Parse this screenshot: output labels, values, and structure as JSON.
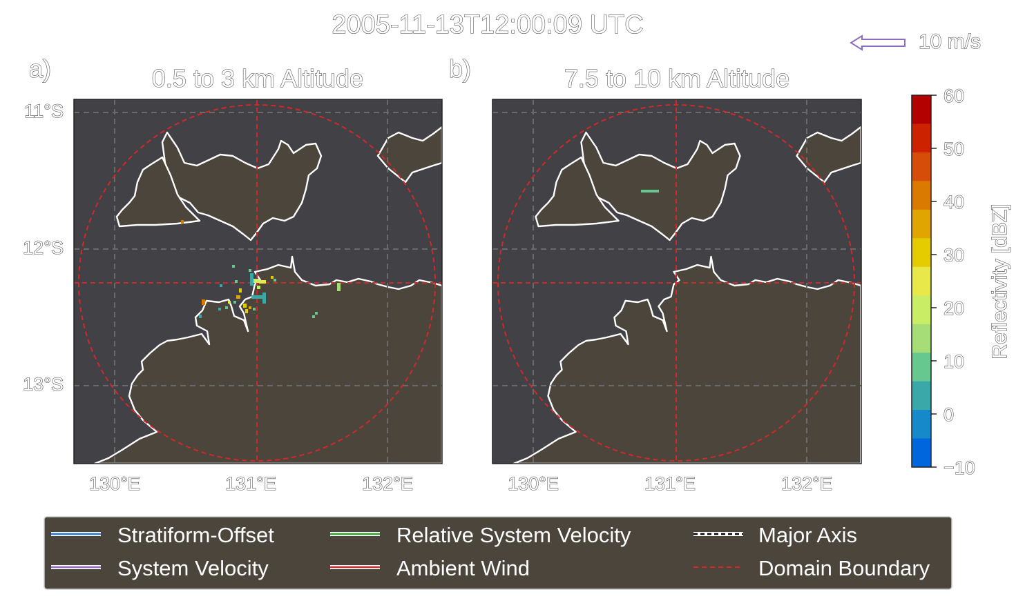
{
  "figure": {
    "suptitle": "2005-11-13T12:00:09 UTC",
    "scale_arrow": {
      "label": "10 m/s",
      "color": "#8e6bbf",
      "direction": "west"
    }
  },
  "panels": [
    {
      "id": "a",
      "letter": "a)",
      "title": "0.5 to 3 km Altitude",
      "y_ticks": [
        "11°S",
        "12°S",
        "13°S"
      ],
      "x_ticks": [
        "130°E",
        "131°E",
        "132°E"
      ]
    },
    {
      "id": "b",
      "letter": "b)",
      "title": "7.5 to 10 km Altitude",
      "y_ticks": [],
      "x_ticks": [
        "130°E",
        "131°E",
        "132°E"
      ]
    }
  ],
  "colorbar": {
    "label": "Reflectivity [dBZ]",
    "ticks": [
      "60",
      "50",
      "40",
      "30",
      "20",
      "10",
      "0",
      "−10"
    ],
    "colors": [
      "#b30000",
      "#cc2200",
      "#d64d0a",
      "#db7a00",
      "#e0a500",
      "#e5cc00",
      "#e8e84a",
      "#c9ee66",
      "#a6dd77",
      "#66c78f",
      "#3aa8a8",
      "#1589c9",
      "#0066dd"
    ]
  },
  "legend": {
    "items": [
      {
        "label": "Stratiform-Offset",
        "color": "#1f77d4",
        "style": "solid"
      },
      {
        "label": "System Velocity",
        "color": "#9467bd",
        "style": "solid"
      },
      {
        "label": "Relative System Velocity",
        "color": "#2ca02c",
        "style": "solid"
      },
      {
        "label": "Ambient Wind",
        "color": "#d62728",
        "style": "solid"
      },
      {
        "label": "Major Axis",
        "color": "#000000",
        "style": "dashed"
      },
      {
        "label": "Domain Boundary",
        "color": "#d62728",
        "style": "dashed-thin"
      }
    ]
  },
  "colors": {
    "ocean": "#424246",
    "land": "#4b453c",
    "coast": "#ffffff",
    "grid": "#6a6a6a",
    "boundary": "#d62728"
  }
}
